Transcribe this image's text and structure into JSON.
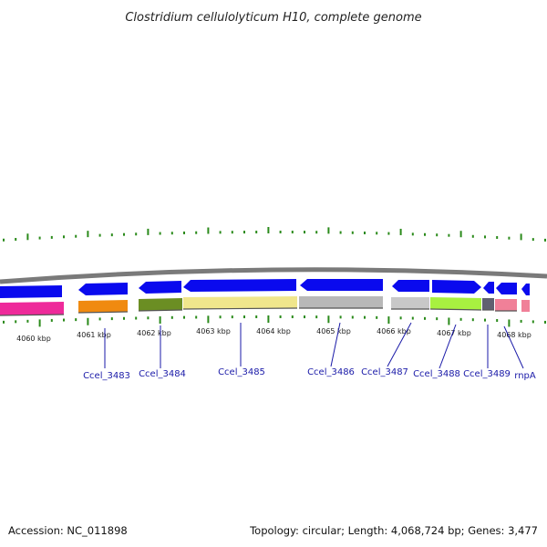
{
  "title": "Clostridium cellulolyticum H10, complete genome",
  "footer": {
    "accession": "Accession: NC_011898",
    "summary": "Topology: circular; Length: 4,068,724 bp; Genes: 3,477"
  },
  "kbp_labels": [
    "4060 kbp",
    "4061 kbp",
    "4062 kbp",
    "4063 kbp",
    "4064 kbp",
    "4065 kbp",
    "4066 kbp",
    "4067 kbp",
    "4068 kbp"
  ],
  "gene_labels": [
    "Ccel_3483",
    "Ccel_3484",
    "Ccel_3485",
    "Ccel_3486",
    "Ccel_3487",
    "Ccel_3488",
    "Ccel_3489",
    "rnpA"
  ],
  "colors": {
    "gene_arrow": "#0a0aee",
    "backbone": "#7a7a7a",
    "tick": "#2a8a1a",
    "label": "#1a1aa8",
    "cog_segments": [
      "#ee2a9a",
      "#f08a10",
      "#6b8e23",
      "#f0e68c",
      "#b8b8b8",
      "#c8c8c8",
      "#a8f040",
      "#606070",
      "#f08098",
      "#f08098"
    ]
  }
}
